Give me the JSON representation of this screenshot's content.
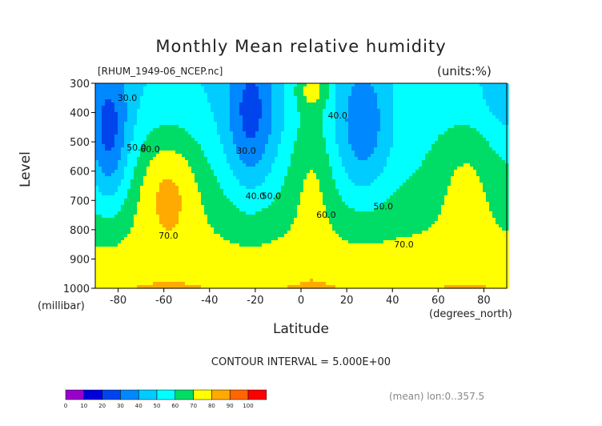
{
  "chart_data": {
    "type": "heatmap",
    "title": "Monthly Mean relative humidity",
    "file_label": "[RHUM_1949-06_NCEP.nc]",
    "units_label": "(units:%)",
    "ylabel": "Level",
    "yunit": "(millibar)",
    "xlabel": "Latitude",
    "xunit": "(degrees_north)",
    "x_ticks": [
      -80,
      -60,
      -40,
      -20,
      0,
      20,
      40,
      60,
      80
    ],
    "y_ticks": [
      300,
      400,
      500,
      600,
      700,
      800,
      900,
      1000
    ],
    "xlim": [
      -90,
      90
    ],
    "ylim": [
      1000,
      300
    ],
    "contour_interval_label": "CONTOUR INTERVAL = 5.000E+00",
    "averaging_label": "(mean) lon:0..357.5",
    "colorbar": {
      "levels": [
        0,
        10,
        20,
        30,
        40,
        50,
        60,
        70,
        80,
        90,
        100
      ],
      "colors": [
        "#9900cc",
        "#0000dd",
        "#0044ee",
        "#0088ff",
        "#00ccff",
        "#00ffff",
        "#00dd66",
        "#ffff00",
        "#ffaa00",
        "#ff6600",
        "#ff0000"
      ]
    },
    "contour_labels": [
      {
        "text": "30.0",
        "x": -76,
        "y": 360
      },
      {
        "text": "50.0",
        "x": -72,
        "y": 530
      },
      {
        "text": "60.0",
        "x": -66,
        "y": 535
      },
      {
        "text": "30.0",
        "x": -24,
        "y": 540
      },
      {
        "text": "40.0",
        "x": -20,
        "y": 695
      },
      {
        "text": "50.0",
        "x": -13,
        "y": 695
      },
      {
        "text": "60.0",
        "x": 11,
        "y": 760
      },
      {
        "text": "40.0",
        "x": 16,
        "y": 420
      },
      {
        "text": "50.0",
        "x": 36,
        "y": 730
      },
      {
        "text": "70.0",
        "x": -58,
        "y": 830
      },
      {
        "text": "70.0",
        "x": 45,
        "y": 860
      }
    ]
  }
}
